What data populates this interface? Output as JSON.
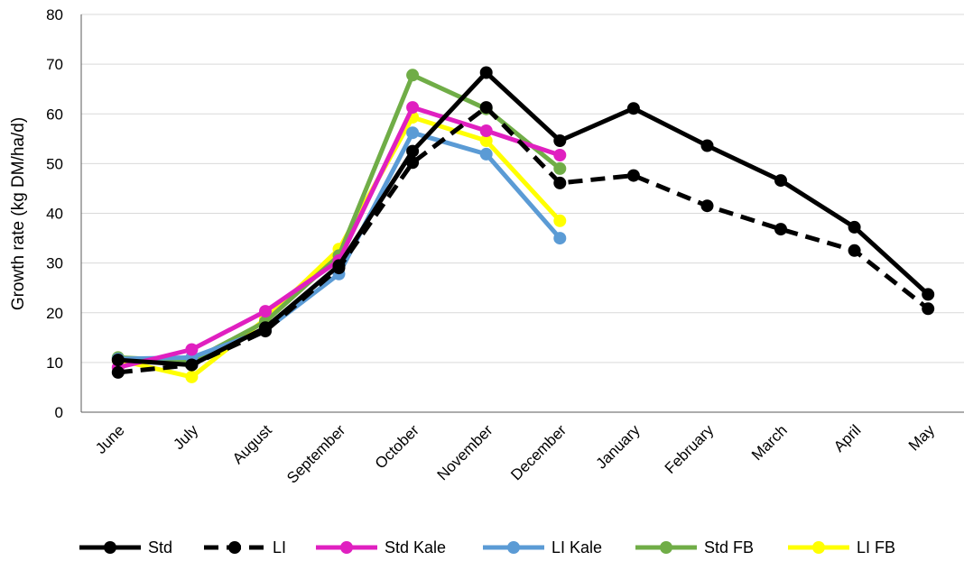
{
  "chart_data": {
    "type": "line",
    "title": "",
    "xlabel": "",
    "ylabel": "Growth rate (kg DM/ha/d)",
    "ylim": [
      0,
      80
    ],
    "yticks": [
      "0",
      "10",
      "20",
      "30",
      "40",
      "50",
      "60",
      "70",
      "80"
    ],
    "categories": [
      "June",
      "July",
      "August",
      "September",
      "October",
      "November",
      "December",
      "January",
      "February",
      "March",
      "April",
      "May"
    ],
    "grid": "horizontal",
    "legend_position": "bottom",
    "series": [
      {
        "name": "Std",
        "color": "#000000",
        "dashed": false,
        "values": [
          10.5,
          9.5,
          17,
          29.5,
          52.5,
          68.3,
          54.6,
          61.1,
          53.6,
          46.6,
          37.2,
          23.7
        ]
      },
      {
        "name": "LI",
        "color": "#000000",
        "dashed": true,
        "values": [
          8.0,
          9.5,
          16.3,
          29,
          50.2,
          61.3,
          46.1,
          47.6,
          41.5,
          36.8,
          32.5,
          20.8
        ]
      },
      {
        "name": "Std Kale",
        "color": "#E020C0",
        "dashed": false,
        "values": [
          9.0,
          12.6,
          20.3,
          30.5,
          61.3,
          56.6,
          51.7,
          null,
          null,
          null,
          null,
          null
        ]
      },
      {
        "name": "LI Kale",
        "color": "#5B9BD5",
        "dashed": false,
        "values": [
          10.7,
          11.0,
          16.5,
          27.8,
          56.2,
          51.9,
          35.0,
          null,
          null,
          null,
          null,
          null
        ]
      },
      {
        "name": "Std FB",
        "color": "#70AD47",
        "dashed": false,
        "values": [
          11.0,
          10.3,
          18.2,
          31.5,
          67.8,
          61.0,
          49.0,
          null,
          null,
          null,
          null,
          null
        ]
      },
      {
        "name": "LI FB",
        "color": "#FFFF00",
        "dashed": false,
        "values": [
          10.5,
          7.1,
          18.7,
          32.8,
          59.3,
          54.6,
          38.5,
          null,
          null,
          null,
          null,
          null
        ]
      }
    ]
  }
}
